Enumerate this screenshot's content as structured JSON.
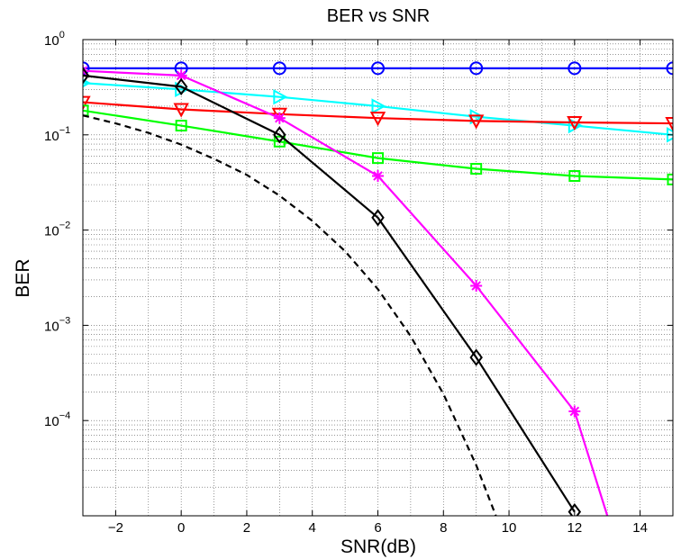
{
  "chart_data": {
    "type": "line",
    "title": "BER vs SNR",
    "xlabel": "SNR(dB)",
    "ylabel": "BER",
    "xlim": [
      -3,
      15
    ],
    "ylim": [
      1e-05,
      1
    ],
    "yscale": "log",
    "grid": "major and minor, dotted",
    "x_ticks": [
      -2,
      0,
      2,
      4,
      6,
      8,
      10,
      12,
      14
    ],
    "y_ticks": [
      {
        "base": "10",
        "exp": "0",
        "value": 1
      },
      {
        "base": "10",
        "exp": "-1",
        "value": 0.1
      },
      {
        "base": "10",
        "exp": "-2",
        "value": 0.01
      },
      {
        "base": "10",
        "exp": "-3",
        "value": 0.001
      },
      {
        "base": "10",
        "exp": "-4",
        "value": 0.0001
      }
    ],
    "series": [
      {
        "color": "#0000ff",
        "marker": "circle",
        "dash": "solid",
        "x": [
          -3,
          0,
          3,
          6,
          9,
          12,
          15
        ],
        "y": [
          0.5,
          0.5,
          0.5,
          0.5,
          0.5,
          0.5,
          0.5
        ]
      },
      {
        "color": "#00ffff",
        "marker": "triangle-right",
        "dash": "solid",
        "x": [
          -3,
          0,
          3,
          6,
          9,
          12,
          15
        ],
        "y": [
          0.35,
          0.3,
          0.25,
          0.2,
          0.155,
          0.125,
          0.1
        ]
      },
      {
        "color": "#ff0000",
        "marker": "triangle-down",
        "dash": "solid",
        "x": [
          -3,
          0,
          3,
          6,
          9,
          12,
          15
        ],
        "y": [
          0.22,
          0.185,
          0.165,
          0.15,
          0.14,
          0.135,
          0.132
        ]
      },
      {
        "color": "#00ff00",
        "marker": "square",
        "dash": "solid",
        "x": [
          -3,
          0,
          3,
          6,
          9,
          12,
          15
        ],
        "y": [
          0.18,
          0.125,
          0.085,
          0.057,
          0.044,
          0.037,
          0.034
        ]
      },
      {
        "color": "#ff00ff",
        "marker": "star",
        "dash": "solid",
        "x": [
          -3,
          0,
          3,
          6,
          9,
          12,
          13
        ],
        "y": [
          0.47,
          0.42,
          0.15,
          0.037,
          0.0026,
          0.000125,
          1e-05
        ],
        "marker_count": 6
      },
      {
        "color": "#000000",
        "marker": "diamond",
        "dash": "solid",
        "x": [
          -3,
          0,
          3,
          6,
          9,
          12
        ],
        "y": [
          0.42,
          0.32,
          0.1,
          0.0135,
          0.00046,
          1.1e-05
        ]
      },
      {
        "color": "#000000",
        "marker": "none",
        "dash": "dashed",
        "x": [
          -3,
          -2,
          -1,
          0,
          1,
          2,
          3,
          4,
          5,
          6,
          7,
          8,
          9,
          9.6
        ],
        "y": [
          0.16,
          0.132,
          0.105,
          0.079,
          0.056,
          0.038,
          0.023,
          0.0125,
          0.006,
          0.0024,
          0.00077,
          0.00019,
          3.4e-05,
          1e-05
        ]
      }
    ]
  }
}
